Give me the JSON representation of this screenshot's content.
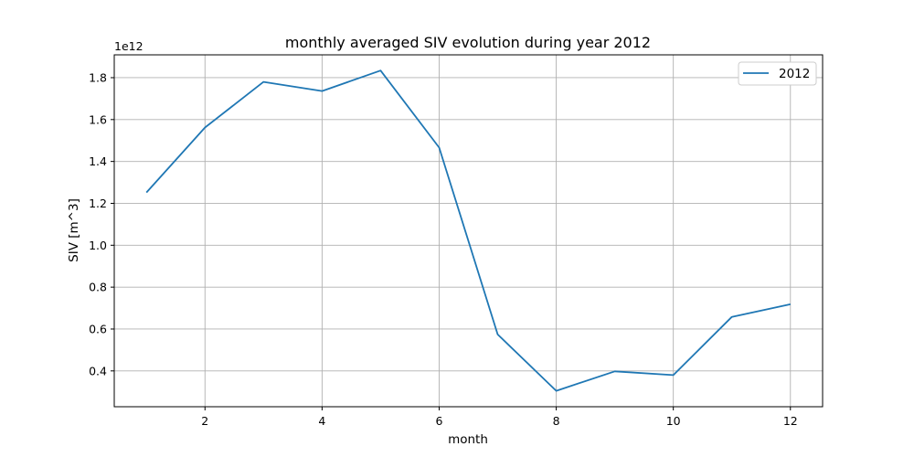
{
  "chart_data": {
    "type": "line",
    "title": "monthly averaged SIV evolution during year 2012",
    "xlabel": "month",
    "ylabel": "SIV [m^3]",
    "y_offset_label": "1e12",
    "x": [
      1,
      2,
      3,
      4,
      5,
      6,
      7,
      8,
      9,
      10,
      11,
      12
    ],
    "series": [
      {
        "name": "2012",
        "color": "#1f77b4",
        "values": [
          1.252,
          1.562,
          1.78,
          1.736,
          1.834,
          1.466,
          0.574,
          0.305,
          0.398,
          0.38,
          0.658,
          0.718
        ]
      }
    ],
    "xlim": [
      0.45,
      12.55
    ],
    "ylim": [
      0.229,
      1.909
    ],
    "xticks": [
      2,
      4,
      6,
      8,
      10,
      12
    ],
    "xtick_labels": [
      "2",
      "4",
      "6",
      "8",
      "10",
      "12"
    ],
    "yticks": [
      0.4,
      0.6,
      0.8,
      1.0,
      1.2,
      1.4,
      1.6,
      1.8
    ],
    "ytick_labels": [
      "0.4",
      "0.6",
      "0.8",
      "1.0",
      "1.2",
      "1.4",
      "1.6",
      "1.8"
    ],
    "grid": true,
    "legend_position": "top-right"
  }
}
